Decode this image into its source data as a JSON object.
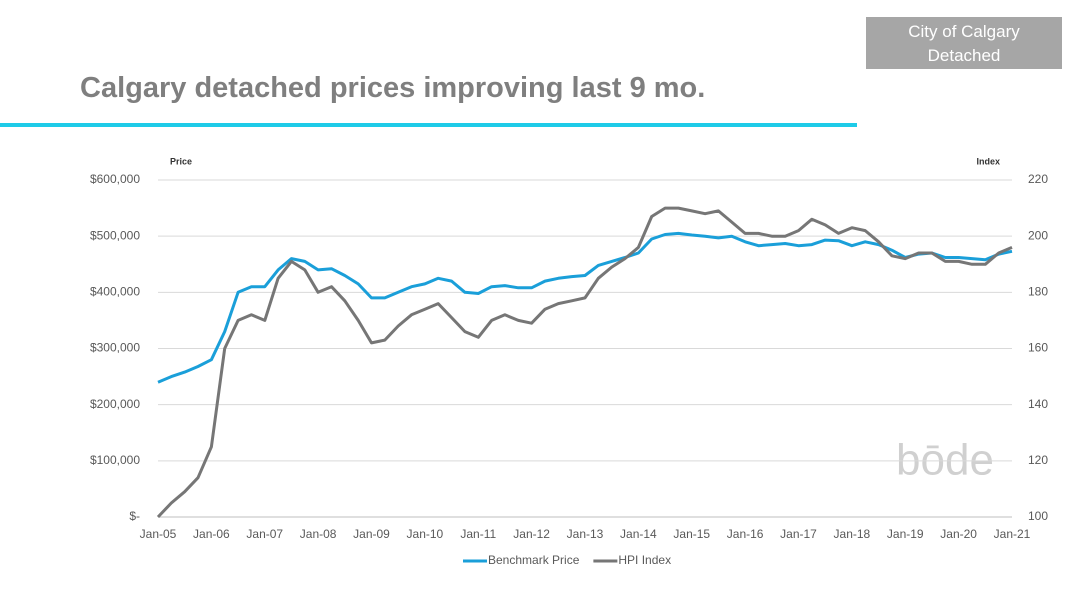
{
  "header": {
    "badge": [
      "City of Calgary",
      "Detached"
    ],
    "title": "Calgary detached prices improving last 9 mo.",
    "logo": "bōde"
  },
  "chart_data": {
    "type": "line",
    "y_label": "Price",
    "y2_label": "Index",
    "categories": [
      "Jan-05",
      null,
      null,
      null,
      "Jan-06",
      null,
      null,
      null,
      "Jan-07",
      null,
      null,
      null,
      "Jan-08",
      null,
      null,
      null,
      "Jan-09",
      null,
      null,
      null,
      "Jan-10",
      null,
      null,
      null,
      "Jan-11",
      null,
      null,
      null,
      "Jan-12",
      null,
      null,
      null,
      "Jan-13",
      null,
      null,
      null,
      "Jan-14",
      null,
      null,
      null,
      "Jan-15",
      null,
      null,
      null,
      "Jan-16",
      null,
      null,
      null,
      "Jan-17",
      null,
      null,
      null,
      "Jan-18",
      null,
      null,
      null,
      "Jan-19",
      null,
      null,
      null,
      "Jan-20",
      null,
      null,
      null,
      "Jan-21"
    ],
    "series": [
      {
        "name": "Benchmark Price",
        "color": "#1a9fd9",
        "axis": "y",
        "values": [
          240000,
          250000,
          258000,
          268000,
          280000,
          330000,
          400000,
          410000,
          410000,
          440000,
          460000,
          455000,
          440000,
          442000,
          430000,
          415000,
          390000,
          390000,
          400000,
          410000,
          415000,
          425000,
          420000,
          400000,
          398000,
          410000,
          412000,
          408000,
          408000,
          420000,
          425000,
          428000,
          430000,
          448000,
          455000,
          462000,
          470000,
          495000,
          503000,
          505000,
          502000,
          500000,
          497000,
          500000,
          490000,
          483000,
          485000,
          487000,
          483000,
          485000,
          493000,
          492000,
          483000,
          490000,
          485000,
          475000,
          462000,
          468000,
          470000,
          462000,
          462000,
          460000,
          458000,
          468000,
          473000
        ]
      },
      {
        "name": "HPI Index",
        "color": "#767676",
        "axis": "y2",
        "values": [
          100,
          105,
          109,
          114,
          125,
          160,
          170,
          172,
          170,
          185,
          191,
          188,
          180,
          182,
          177,
          170,
          162,
          163,
          168,
          172,
          174,
          176,
          171,
          166,
          164,
          170,
          172,
          170,
          169,
          174,
          176,
          177,
          178,
          185,
          189,
          192,
          196,
          207,
          210,
          210,
          209,
          208,
          209,
          205,
          201,
          201,
          200,
          200,
          202,
          206,
          204,
          201,
          203,
          202,
          198,
          193,
          192,
          194,
          194,
          191,
          191,
          190,
          190,
          194,
          196
        ]
      }
    ],
    "ylim": [
      0,
      600000
    ],
    "yticks": [
      {
        "value": 0,
        "label": "$-"
      },
      {
        "value": 100000,
        "label": "$100,000"
      },
      {
        "value": 200000,
        "label": "$200,000"
      },
      {
        "value": 300000,
        "label": "$300,000"
      },
      {
        "value": 400000,
        "label": "$400,000"
      },
      {
        "value": 500000,
        "label": "$500,000"
      },
      {
        "value": 600000,
        "label": "$600,000"
      }
    ],
    "y2lim": [
      100,
      220
    ],
    "y2ticks": [
      100,
      120,
      140,
      160,
      180,
      200,
      220
    ],
    "grid": true,
    "legend": "bottom"
  }
}
